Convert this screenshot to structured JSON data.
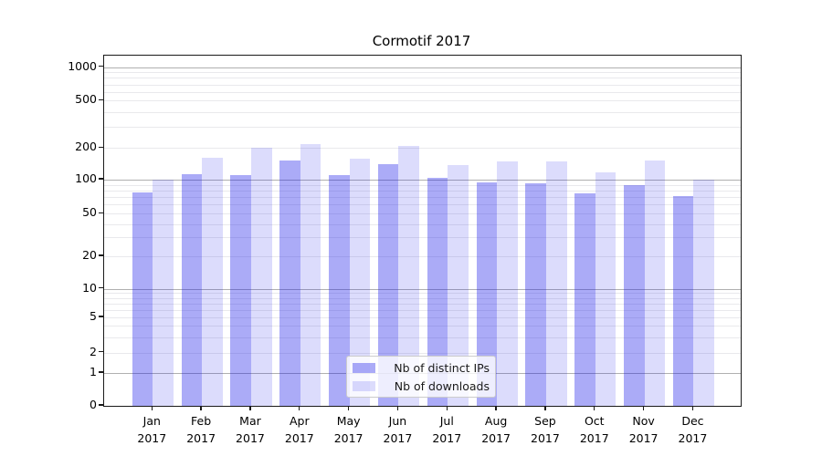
{
  "title": "Cormotif 2017",
  "chart_data": {
    "type": "bar",
    "title": "Cormotif 2017",
    "categories": [
      "Jan 2017",
      "Feb 2017",
      "Mar 2017",
      "Apr 2017",
      "May 2017",
      "Jun 2017",
      "Jul 2017",
      "Aug 2017",
      "Sep 2017",
      "Oct 2017",
      "Nov 2017",
      "Dec 2017"
    ],
    "series": [
      {
        "name": "Nb of distinct IPs",
        "color": "rgba(21,21,233,0.36)",
        "values": [
          77,
          112,
          110,
          152,
          110,
          140,
          105,
          95,
          93,
          76,
          89,
          71
        ]
      },
      {
        "name": "Nb of downloads",
        "color": "rgba(21,21,233,0.15)",
        "values": [
          100,
          162,
          202,
          216,
          159,
          208,
          138,
          150,
          149,
          118,
          152,
          100
        ]
      }
    ],
    "yscale": "symlog",
    "yticks": [
      0,
      1,
      2,
      5,
      10,
      20,
      50,
      100,
      200,
      500,
      1000
    ],
    "ylim": [
      0,
      1268
    ],
    "xlabel": "",
    "ylabel": "",
    "grid": true,
    "legend_position": "lower center",
    "colors": {
      "grid_major": "#b0b0b0",
      "grid_minor": "#e9e9ec",
      "spine": "#1a1a1a"
    }
  },
  "legend": {
    "items": [
      {
        "label": "Nb of distinct IPs"
      },
      {
        "label": "Nb of downloads"
      }
    ]
  }
}
